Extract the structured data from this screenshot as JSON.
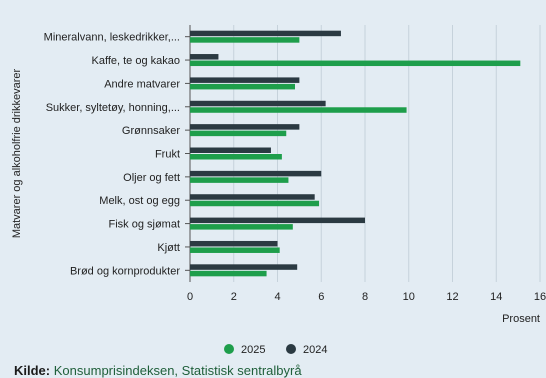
{
  "chart_data": {
    "type": "bar",
    "orientation": "horizontal",
    "title": "",
    "categories": [
      "Mineralvann, leskedrikker,...",
      "Kaffe, te og kakao",
      "Andre matvarer",
      "Sukker, syltetøy, honning,...",
      "Grønnsaker",
      "Frukt",
      "Oljer og fett",
      "Melk, ost og egg",
      "Fisk og sjømat",
      "Kjøtt",
      "Brød og kornprodukter"
    ],
    "series": [
      {
        "name": "2025",
        "color": "#1e9e4b",
        "values": [
          5.0,
          15.1,
          4.8,
          9.9,
          4.4,
          4.2,
          4.5,
          5.9,
          4.7,
          4.1,
          3.5
        ]
      },
      {
        "name": "2024",
        "color": "#2b3a42",
        "values": [
          6.9,
          1.3,
          5.0,
          6.2,
          5.0,
          3.7,
          6.0,
          5.7,
          8.0,
          4.0,
          4.9
        ]
      }
    ],
    "xlabel": "Prosent",
    "ylabel": "Matvarer og alkoholfrie drikkevarer",
    "xlim": [
      0,
      16
    ],
    "xticks": [
      "0",
      "2",
      "4",
      "6",
      "8",
      "10",
      "12",
      "14",
      "16"
    ],
    "grid": true,
    "legend_position": "bottom"
  },
  "source": {
    "label": "Kilde:",
    "text": "Konsumprisindeksen, Statistisk sentralbyrå"
  }
}
